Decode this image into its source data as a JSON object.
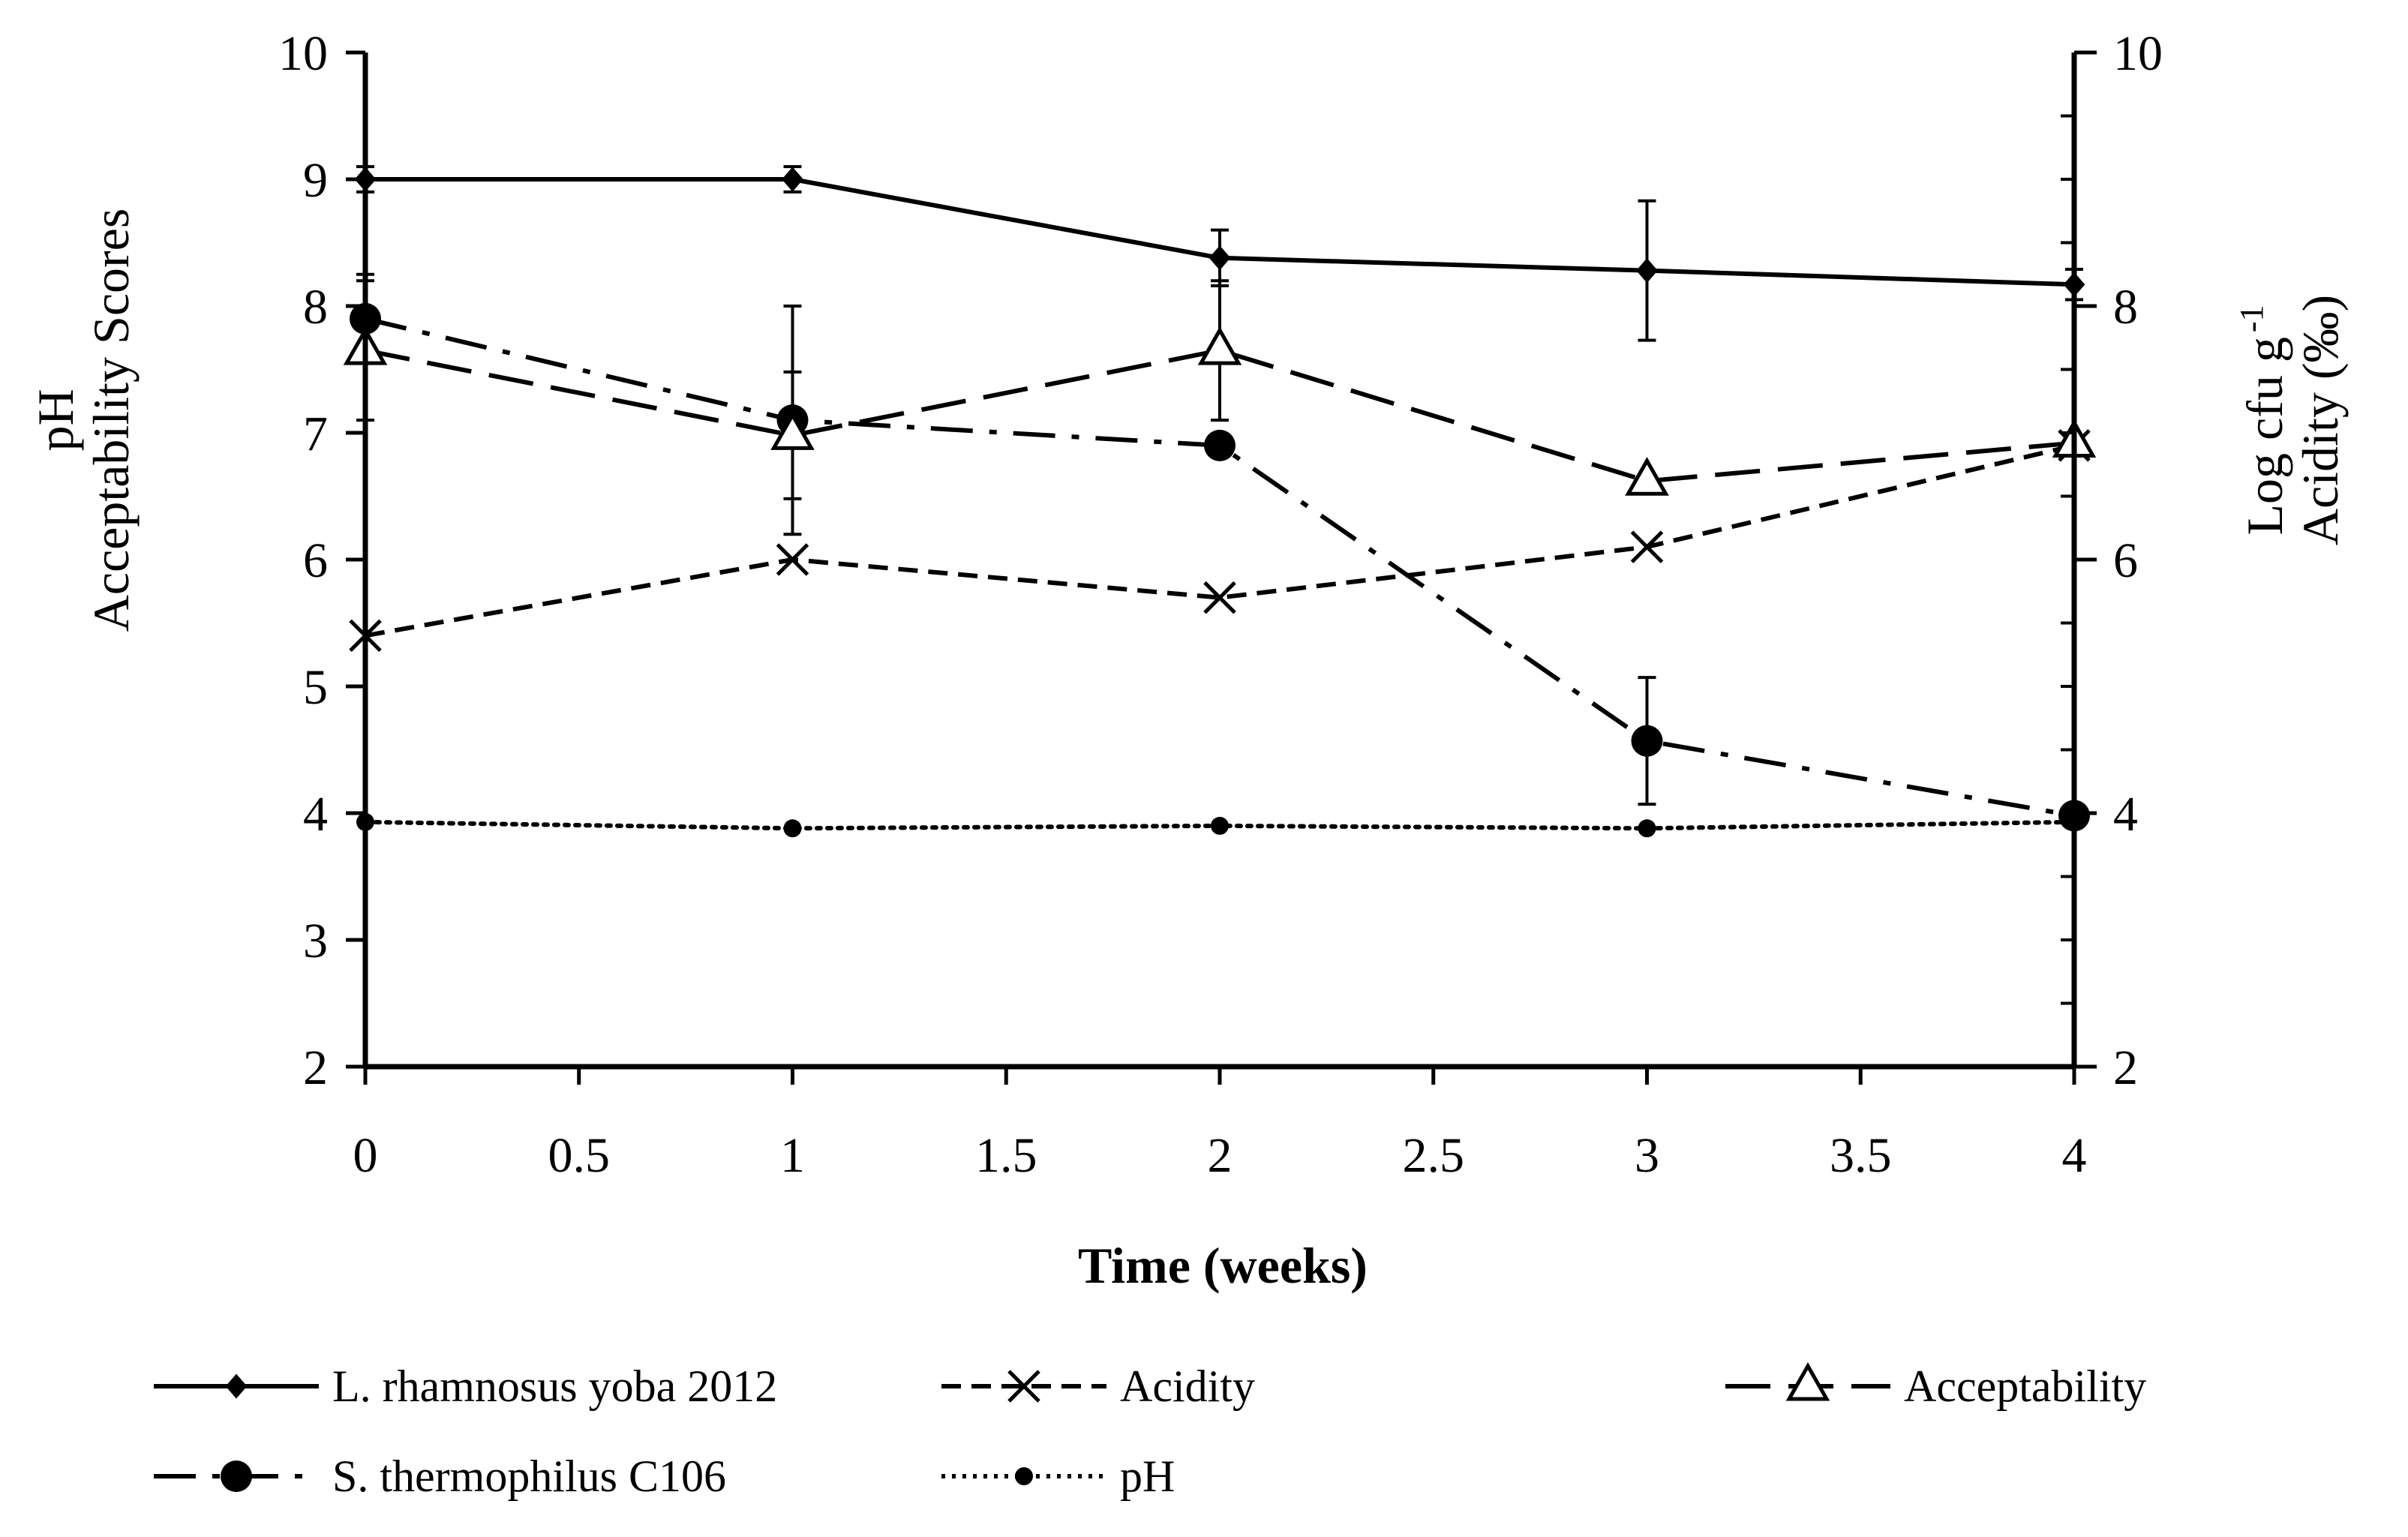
{
  "chart_data": {
    "type": "line",
    "title": "",
    "xlabel": "Time (weeks)",
    "ylabel_left": [
      "pH",
      "Acceptability Scores"
    ],
    "ylabel_right": [
      "Log cfu g",
      "Acidity (‰)"
    ],
    "ylabel_right_superscript": "-1",
    "xlim": [
      0,
      4
    ],
    "ylim_left": [
      2,
      10
    ],
    "ylim_right": [
      2,
      10
    ],
    "x_ticks": [
      "0",
      "0.5",
      "1",
      "1.5",
      "2",
      "2.5",
      "3",
      "3.5",
      "4"
    ],
    "y_ticks_left": [
      "2",
      "3",
      "4",
      "5",
      "6",
      "7",
      "8",
      "9",
      "10"
    ],
    "y_ticks_right": [
      "2",
      "4",
      "6",
      "8",
      "10"
    ],
    "grid": false,
    "legend_position": "bottom",
    "x": [
      0,
      1,
      2,
      3,
      4
    ],
    "series": [
      {
        "name": "L. rhamnosus yoba 2012",
        "axis": "right",
        "values": [
          9.0,
          9.0,
          8.38,
          8.28,
          8.17
        ],
        "errors": [
          0.1,
          0.1,
          0.22,
          0.55,
          0.12
        ],
        "marker": "diamond",
        "line_style": "solid"
      },
      {
        "name": "S. thermophilus C106",
        "axis": "right",
        "values": [
          7.9,
          7.1,
          6.9,
          4.57,
          3.98
        ],
        "errors": [
          0.35,
          0.9,
          0.0,
          0.5,
          0.0
        ],
        "marker": "circle",
        "line_style": "dash-dot"
      },
      {
        "name": "Acidity",
        "axis": "right",
        "values": [
          5.4,
          6.0,
          5.7,
          6.1,
          6.9
        ],
        "errors": [
          0,
          0,
          0,
          0,
          0
        ],
        "marker": "cross",
        "line_style": "dashed"
      },
      {
        "name": "pH",
        "axis": "left",
        "values": [
          3.93,
          3.88,
          3.9,
          3.88,
          3.93
        ],
        "errors": [
          0,
          0,
          0,
          0,
          0
        ],
        "marker": "small-circle",
        "line_style": "dotted"
      },
      {
        "name": "Acceptability",
        "axis": "left",
        "values": [
          7.65,
          6.98,
          7.65,
          6.62,
          6.92
        ],
        "errors": [
          0.55,
          0.5,
          0.55,
          0.05,
          0.05
        ],
        "marker": "triangle-open",
        "line_style": "long-dash"
      }
    ],
    "colors": {
      "line": "#000000",
      "background": "#ffffff"
    }
  }
}
